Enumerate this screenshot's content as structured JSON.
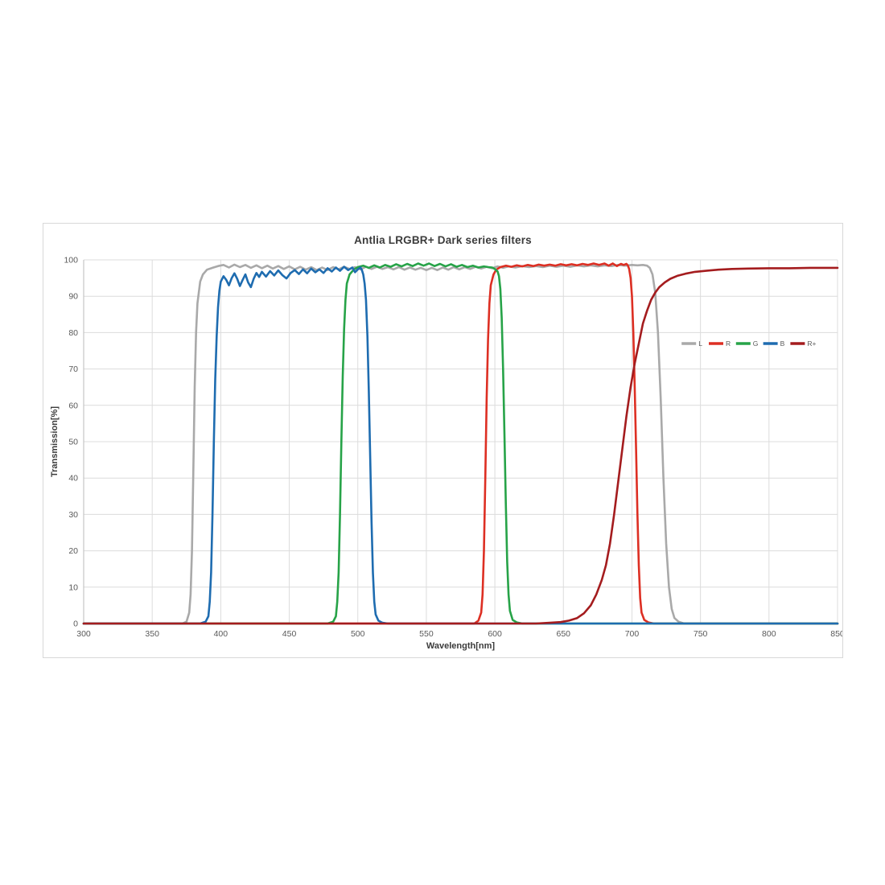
{
  "page": {
    "background": "#ffffff"
  },
  "chart_card": {
    "border_color": "#d8d8d8"
  },
  "chart_data": {
    "type": "line",
    "title": "Antlia LRGBR+ Dark series filters",
    "xlabel": "Wavelength[nm]",
    "ylabel": "Transmission[%]",
    "xlim": [
      300,
      850
    ],
    "ylim": [
      0,
      100
    ],
    "x_ticks": [
      300,
      350,
      400,
      450,
      500,
      550,
      600,
      650,
      700,
      750,
      800,
      850
    ],
    "y_ticks": [
      0,
      10,
      20,
      30,
      40,
      50,
      60,
      70,
      80,
      90,
      100
    ],
    "grid": true,
    "grid_color": "#dcdcdc",
    "axis_color": "#c6c6c6",
    "tick_label_color": "#595959",
    "legend_position": "inside-right",
    "legend_labels": [
      "L",
      "R",
      "G",
      "B",
      "R+"
    ],
    "series": [
      {
        "name": "L",
        "color": "#a9a9a9",
        "points": [
          [
            300,
            0
          ],
          [
            360,
            0
          ],
          [
            372,
            0
          ],
          [
            375,
            0.5
          ],
          [
            377,
            3
          ],
          [
            378,
            8
          ],
          [
            379,
            20
          ],
          [
            380,
            42
          ],
          [
            381,
            65
          ],
          [
            382,
            80
          ],
          [
            383,
            88
          ],
          [
            385,
            94
          ],
          [
            387,
            96
          ],
          [
            390,
            97.3
          ],
          [
            394,
            97.8
          ],
          [
            398,
            98.3
          ],
          [
            402,
            98.6
          ],
          [
            406,
            97.9
          ],
          [
            410,
            98.7
          ],
          [
            414,
            98
          ],
          [
            418,
            98.6
          ],
          [
            422,
            97.8
          ],
          [
            426,
            98.5
          ],
          [
            430,
            97.7
          ],
          [
            434,
            98.4
          ],
          [
            438,
            97.6
          ],
          [
            442,
            98.3
          ],
          [
            446,
            97.5
          ],
          [
            450,
            98.2
          ],
          [
            454,
            97.4
          ],
          [
            458,
            98.1
          ],
          [
            462,
            97.3
          ],
          [
            466,
            98
          ],
          [
            470,
            97.2
          ],
          [
            474,
            97.9
          ],
          [
            478,
            97.2
          ],
          [
            482,
            98
          ],
          [
            486,
            97.4
          ],
          [
            490,
            98.1
          ],
          [
            494,
            97.5
          ],
          [
            498,
            98
          ],
          [
            502,
            97.4
          ],
          [
            506,
            98.1
          ],
          [
            510,
            97.5
          ],
          [
            514,
            98.1
          ],
          [
            518,
            97.5
          ],
          [
            522,
            98
          ],
          [
            526,
            97.4
          ],
          [
            530,
            98
          ],
          [
            534,
            97.3
          ],
          [
            538,
            97.9
          ],
          [
            542,
            97.3
          ],
          [
            546,
            97.8
          ],
          [
            550,
            97.2
          ],
          [
            554,
            97.8
          ],
          [
            558,
            97.2
          ],
          [
            562,
            97.9
          ],
          [
            566,
            97.3
          ],
          [
            570,
            98
          ],
          [
            574,
            97.4
          ],
          [
            578,
            98
          ],
          [
            582,
            97.5
          ],
          [
            586,
            98.1
          ],
          [
            590,
            97.6
          ],
          [
            594,
            98.1
          ],
          [
            598,
            97.7
          ],
          [
            602,
            98.2
          ],
          [
            606,
            97.8
          ],
          [
            610,
            98.2
          ],
          [
            615,
            97.9
          ],
          [
            620,
            98.3
          ],
          [
            625,
            98
          ],
          [
            630,
            98.3
          ],
          [
            635,
            98
          ],
          [
            640,
            98.4
          ],
          [
            645,
            98.1
          ],
          [
            650,
            98.4
          ],
          [
            655,
            98.1
          ],
          [
            660,
            98.5
          ],
          [
            665,
            98.2
          ],
          [
            670,
            98.5
          ],
          [
            675,
            98.2
          ],
          [
            680,
            98.5
          ],
          [
            685,
            98.3
          ],
          [
            690,
            98.6
          ],
          [
            695,
            98.4
          ],
          [
            700,
            98.6
          ],
          [
            704,
            98.5
          ],
          [
            708,
            98.6
          ],
          [
            711,
            98.4
          ],
          [
            713,
            97.8
          ],
          [
            715,
            96
          ],
          [
            717,
            91
          ],
          [
            719,
            80
          ],
          [
            721,
            62
          ],
          [
            723,
            40
          ],
          [
            725,
            22
          ],
          [
            727,
            10
          ],
          [
            729,
            4
          ],
          [
            731,
            1.5
          ],
          [
            734,
            0.5
          ],
          [
            738,
            0
          ],
          [
            850,
            0
          ]
        ]
      },
      {
        "name": "R",
        "color": "#dd2f23",
        "points": [
          [
            300,
            0
          ],
          [
            580,
            0
          ],
          [
            585,
            0
          ],
          [
            588,
            0.8
          ],
          [
            590,
            3
          ],
          [
            591,
            8
          ],
          [
            592,
            20
          ],
          [
            593,
            40
          ],
          [
            594,
            62
          ],
          [
            595,
            78
          ],
          [
            596,
            88
          ],
          [
            597,
            93
          ],
          [
            599,
            96
          ],
          [
            601,
            97.3
          ],
          [
            604,
            98
          ],
          [
            608,
            98.4
          ],
          [
            612,
            98.1
          ],
          [
            616,
            98.5
          ],
          [
            620,
            98.2
          ],
          [
            624,
            98.6
          ],
          [
            628,
            98.3
          ],
          [
            632,
            98.7
          ],
          [
            636,
            98.4
          ],
          [
            640,
            98.7
          ],
          [
            644,
            98.4
          ],
          [
            648,
            98.8
          ],
          [
            652,
            98.5
          ],
          [
            656,
            98.8
          ],
          [
            660,
            98.5
          ],
          [
            664,
            98.9
          ],
          [
            668,
            98.6
          ],
          [
            672,
            99
          ],
          [
            676,
            98.6
          ],
          [
            680,
            99
          ],
          [
            683,
            98.4
          ],
          [
            686,
            99
          ],
          [
            689,
            98.3
          ],
          [
            692,
            98.9
          ],
          [
            694,
            98.6
          ],
          [
            696,
            98.9
          ],
          [
            697,
            98.5
          ],
          [
            698,
            97.5
          ],
          [
            699,
            95
          ],
          [
            700,
            90
          ],
          [
            701,
            80
          ],
          [
            702,
            65
          ],
          [
            703,
            48
          ],
          [
            704,
            30
          ],
          [
            705,
            16
          ],
          [
            706,
            7
          ],
          [
            707,
            3
          ],
          [
            709,
            1
          ],
          [
            712,
            0.3
          ],
          [
            716,
            0
          ],
          [
            850,
            0
          ]
        ]
      },
      {
        "name": "G",
        "color": "#27a348",
        "points": [
          [
            300,
            0
          ],
          [
            478,
            0
          ],
          [
            482,
            0.5
          ],
          [
            484,
            2
          ],
          [
            485,
            6
          ],
          [
            486,
            14
          ],
          [
            487,
            30
          ],
          [
            488,
            50
          ],
          [
            489,
            68
          ],
          [
            490,
            81
          ],
          [
            491,
            89
          ],
          [
            492,
            93.5
          ],
          [
            494,
            96
          ],
          [
            497,
            97.3
          ],
          [
            500,
            98
          ],
          [
            504,
            98.4
          ],
          [
            508,
            97.8
          ],
          [
            512,
            98.5
          ],
          [
            516,
            97.9
          ],
          [
            520,
            98.6
          ],
          [
            524,
            98.1
          ],
          [
            528,
            98.8
          ],
          [
            532,
            98.2
          ],
          [
            536,
            98.9
          ],
          [
            540,
            98.3
          ],
          [
            544,
            99
          ],
          [
            548,
            98.4
          ],
          [
            552,
            99
          ],
          [
            556,
            98.3
          ],
          [
            560,
            98.9
          ],
          [
            564,
            98.2
          ],
          [
            568,
            98.8
          ],
          [
            572,
            98.1
          ],
          [
            576,
            98.6
          ],
          [
            580,
            98
          ],
          [
            584,
            98.4
          ],
          [
            588,
            97.9
          ],
          [
            592,
            98.2
          ],
          [
            595,
            98
          ],
          [
            598,
            97.9
          ],
          [
            600,
            97.5
          ],
          [
            602,
            96.8
          ],
          [
            603,
            95.5
          ],
          [
            604,
            92
          ],
          [
            605,
            84
          ],
          [
            606,
            70
          ],
          [
            607,
            52
          ],
          [
            608,
            33
          ],
          [
            609,
            17
          ],
          [
            610,
            8
          ],
          [
            611,
            3.5
          ],
          [
            613,
            1
          ],
          [
            616,
            0.3
          ],
          [
            620,
            0
          ],
          [
            850,
            0
          ]
        ]
      },
      {
        "name": "B",
        "color": "#1e6cb0",
        "points": [
          [
            300,
            0
          ],
          [
            385,
            0
          ],
          [
            389,
            0.5
          ],
          [
            391,
            2
          ],
          [
            392,
            6
          ],
          [
            393,
            14
          ],
          [
            394,
            30
          ],
          [
            395,
            50
          ],
          [
            396,
            67
          ],
          [
            397,
            79
          ],
          [
            398,
            87
          ],
          [
            399,
            91.5
          ],
          [
            400,
            94
          ],
          [
            402,
            95.5
          ],
          [
            404,
            94.5
          ],
          [
            406,
            93
          ],
          [
            408,
            95
          ],
          [
            410,
            96.3
          ],
          [
            412,
            94.8
          ],
          [
            414,
            92.8
          ],
          [
            416,
            94.5
          ],
          [
            418,
            96
          ],
          [
            420,
            93.8
          ],
          [
            422,
            92.5
          ],
          [
            424,
            94.8
          ],
          [
            426,
            96.4
          ],
          [
            428,
            95.3
          ],
          [
            430,
            96.7
          ],
          [
            433,
            95.4
          ],
          [
            436,
            96.9
          ],
          [
            439,
            95.7
          ],
          [
            442,
            97.1
          ],
          [
            445,
            95.8
          ],
          [
            448,
            94.9
          ],
          [
            451,
            96.4
          ],
          [
            454,
            97.2
          ],
          [
            457,
            96.1
          ],
          [
            460,
            97.4
          ],
          [
            463,
            96.3
          ],
          [
            466,
            97.6
          ],
          [
            469,
            96.6
          ],
          [
            472,
            97.4
          ],
          [
            475,
            96.4
          ],
          [
            478,
            97.7
          ],
          [
            481,
            96.8
          ],
          [
            484,
            97.9
          ],
          [
            487,
            97
          ],
          [
            490,
            98.1
          ],
          [
            493,
            97.2
          ],
          [
            496,
            97.9
          ],
          [
            498,
            96.6
          ],
          [
            500,
            97.4
          ],
          [
            502,
            97.9
          ],
          [
            503,
            97.2
          ],
          [
            504,
            96
          ],
          [
            505,
            93.5
          ],
          [
            506,
            89
          ],
          [
            507,
            79
          ],
          [
            508,
            64
          ],
          [
            509,
            46
          ],
          [
            510,
            28
          ],
          [
            511,
            14
          ],
          [
            512,
            6
          ],
          [
            513,
            2.5
          ],
          [
            515,
            0.8
          ],
          [
            518,
            0.2
          ],
          [
            522,
            0
          ],
          [
            850,
            0
          ]
        ]
      },
      {
        "name": "R+",
        "color": "#a41c1e",
        "points": [
          [
            300,
            0
          ],
          [
            630,
            0
          ],
          [
            640,
            0.2
          ],
          [
            648,
            0.4
          ],
          [
            654,
            0.8
          ],
          [
            660,
            1.5
          ],
          [
            665,
            2.8
          ],
          [
            670,
            5
          ],
          [
            674,
            8
          ],
          [
            678,
            12
          ],
          [
            681,
            16
          ],
          [
            684,
            22
          ],
          [
            687,
            30
          ],
          [
            690,
            39
          ],
          [
            693,
            48
          ],
          [
            696,
            57
          ],
          [
            699,
            65
          ],
          [
            702,
            71.5
          ],
          [
            705,
            77
          ],
          [
            708,
            82.5
          ],
          [
            711,
            86
          ],
          [
            714,
            89
          ],
          [
            717,
            91
          ],
          [
            720,
            92.5
          ],
          [
            724,
            93.8
          ],
          [
            728,
            94.8
          ],
          [
            733,
            95.6
          ],
          [
            739,
            96.2
          ],
          [
            746,
            96.7
          ],
          [
            754,
            97
          ],
          [
            763,
            97.3
          ],
          [
            773,
            97.5
          ],
          [
            785,
            97.6
          ],
          [
            800,
            97.7
          ],
          [
            815,
            97.7
          ],
          [
            830,
            97.8
          ],
          [
            850,
            97.8
          ]
        ]
      }
    ]
  }
}
